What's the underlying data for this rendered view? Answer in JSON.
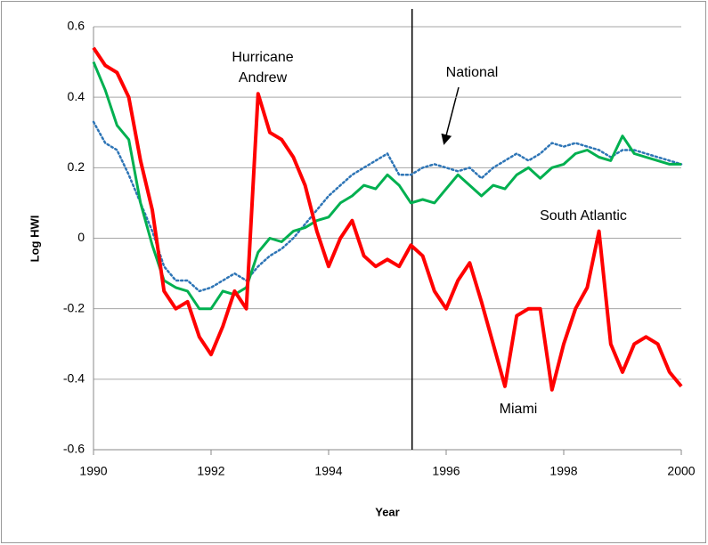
{
  "chart_data": {
    "type": "line",
    "xlabel": "Year",
    "ylabel": "Log HWI",
    "x": [
      1990,
      1990.2,
      1990.4,
      1990.6,
      1990.8,
      1991,
      1991.2,
      1991.4,
      1991.6,
      1991.8,
      1992,
      1992.2,
      1992.4,
      1992.6,
      1992.8,
      1993,
      1993.2,
      1993.4,
      1993.6,
      1993.8,
      1994,
      1994.2,
      1994.4,
      1994.6,
      1994.8,
      1995,
      1995.2,
      1995.4,
      1995.6,
      1995.8,
      1996,
      1996.2,
      1996.4,
      1996.6,
      1996.8,
      1997,
      1997.2,
      1997.4,
      1997.6,
      1997.8,
      1998,
      1998.2,
      1998.4,
      1998.6,
      1998.8,
      1999,
      1999.2,
      1999.4,
      1999.6,
      1999.8,
      2000
    ],
    "series": [
      {
        "name": "National",
        "color": "#2e75b6",
        "dash": "dotted",
        "values": [
          0.33,
          0.27,
          0.25,
          0.18,
          0.1,
          0.02,
          -0.08,
          -0.12,
          -0.12,
          -0.15,
          -0.14,
          -0.12,
          -0.1,
          -0.12,
          -0.08,
          -0.05,
          -0.03,
          0,
          0.04,
          0.08,
          0.12,
          0.15,
          0.18,
          0.2,
          0.22,
          0.24,
          0.18,
          0.18,
          0.2,
          0.21,
          0.2,
          0.19,
          0.2,
          0.17,
          0.2,
          0.22,
          0.24,
          0.22,
          0.24,
          0.27,
          0.26,
          0.27,
          0.26,
          0.25,
          0.23,
          0.25,
          0.25,
          0.24,
          0.23,
          0.22,
          0.21
        ]
      },
      {
        "name": "South Atlantic",
        "color": "#00b050",
        "dash": "solid",
        "values": [
          0.5,
          0.42,
          0.32,
          0.28,
          0.1,
          -0.02,
          -0.12,
          -0.14,
          -0.15,
          -0.2,
          -0.2,
          -0.15,
          -0.16,
          -0.14,
          -0.04,
          0,
          -0.01,
          0.02,
          0.03,
          0.05,
          0.06,
          0.1,
          0.12,
          0.15,
          0.14,
          0.18,
          0.15,
          0.1,
          0.11,
          0.1,
          0.14,
          0.18,
          0.15,
          0.12,
          0.15,
          0.14,
          0.18,
          0.2,
          0.17,
          0.2,
          0.21,
          0.24,
          0.25,
          0.23,
          0.22,
          0.29,
          0.24,
          0.23,
          0.22,
          0.21,
          0.21
        ]
      },
      {
        "name": "Miami",
        "color": "#ff0000",
        "dash": "solid",
        "values": [
          0.54,
          0.49,
          0.47,
          0.4,
          0.22,
          0.08,
          -0.15,
          -0.2,
          -0.18,
          -0.28,
          -0.33,
          -0.25,
          -0.15,
          -0.2,
          0.41,
          0.3,
          0.28,
          0.23,
          0.15,
          0.02,
          -0.08,
          0,
          0.05,
          -0.05,
          -0.08,
          -0.06,
          -0.08,
          -0.02,
          -0.05,
          -0.15,
          -0.2,
          -0.12,
          -0.07,
          -0.18,
          -0.3,
          -0.42,
          -0.22,
          -0.2,
          -0.2,
          -0.43,
          -0.3,
          -0.2,
          -0.14,
          0.02,
          -0.3,
          -0.38,
          -0.3,
          -0.28,
          -0.3,
          -0.38,
          -0.42
        ]
      }
    ],
    "vline": 1995.42,
    "annotations": [
      [
        "Hurricane",
        "Andrew"
      ],
      [
        "National"
      ],
      [
        "South Atlantic"
      ],
      [
        "Miami"
      ]
    ],
    "xlim": [
      1990,
      2000
    ],
    "xticks": [
      1990,
      1992,
      1994,
      1996,
      1998,
      2000
    ],
    "ylim": [
      -0.6,
      0.6
    ],
    "yticks": [
      -0.6,
      -0.4,
      -0.2,
      0,
      0.2,
      0.4,
      0.6
    ],
    "grid": true
  }
}
